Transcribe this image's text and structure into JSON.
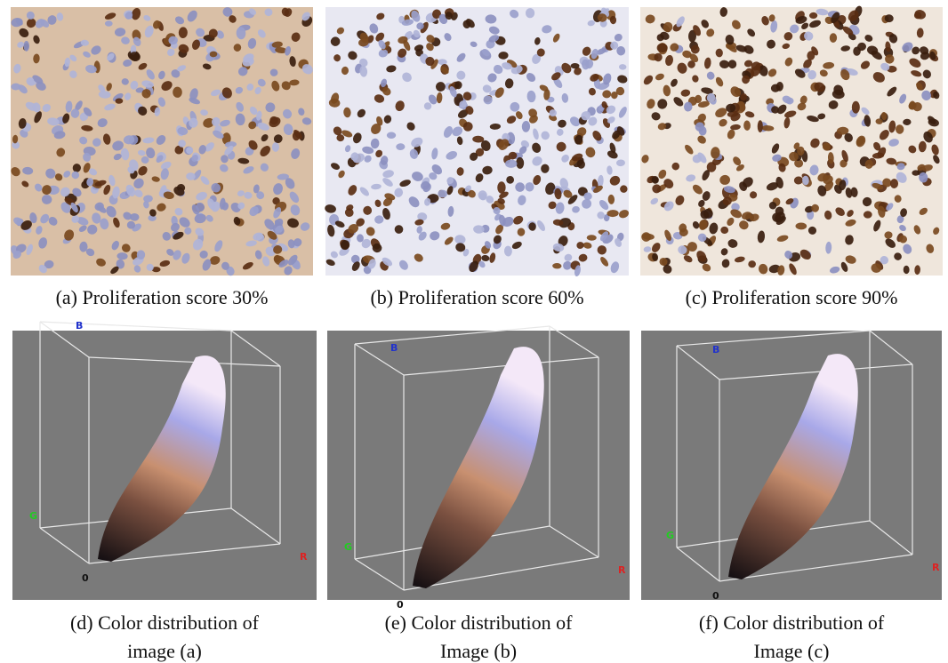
{
  "panels": [
    {
      "caption_lines": [
        "(a) Proliferation score 30%"
      ]
    },
    {
      "caption_lines": [
        "(b) Proliferation score 60%"
      ]
    },
    {
      "caption_lines": [
        "(c) Proliferation score 90%"
      ]
    },
    {
      "caption_lines": [
        "(d) Color distribution of",
        "image (a)"
      ],
      "axes": {
        "b": "B",
        "g": "G",
        "r": "R",
        "origin": "0"
      }
    },
    {
      "caption_lines": [
        "(e) Color distribution of",
        "Image (b)"
      ],
      "axes": {
        "b": "B",
        "g": "G",
        "r": "R",
        "origin": "0"
      }
    },
    {
      "caption_lines": [
        "(f) Color distribution of",
        "Image (c)"
      ],
      "axes": {
        "b": "B",
        "g": "G",
        "r": "R",
        "origin": "0"
      }
    }
  ]
}
